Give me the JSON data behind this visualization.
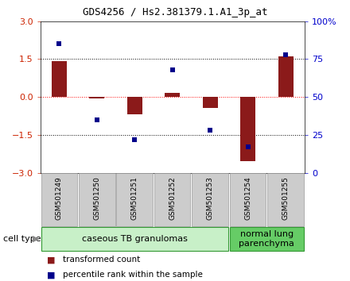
{
  "title": "GDS4256 / Hs2.381379.1.A1_3p_at",
  "samples": [
    "GSM501249",
    "GSM501250",
    "GSM501251",
    "GSM501252",
    "GSM501253",
    "GSM501254",
    "GSM501255"
  ],
  "transformed_count": [
    1.42,
    -0.05,
    -0.7,
    0.15,
    -0.45,
    -2.55,
    1.6
  ],
  "percentile_rank": [
    85,
    35,
    22,
    68,
    28,
    17,
    78
  ],
  "bar_color": "#8B1A1A",
  "square_color": "#00008B",
  "ylim_left": [
    -3,
    3
  ],
  "ylim_right": [
    0,
    100
  ],
  "yticks_left": [
    -3,
    -1.5,
    0,
    1.5,
    3
  ],
  "yticks_right": [
    0,
    25,
    50,
    75,
    100
  ],
  "ytick_labels_right": [
    "0",
    "25",
    "50",
    "75",
    "100%"
  ],
  "groups": [
    {
      "label": "caseous TB granulomas",
      "span": [
        0,
        5
      ],
      "color": "#c8f0c8",
      "border": "#339933"
    },
    {
      "label": "normal lung\nparenchyma",
      "span": [
        5,
        7
      ],
      "color": "#66cc66",
      "border": "#339933"
    }
  ],
  "cell_type_label": "cell type",
  "legend_bar_label": "transformed count",
  "legend_square_label": "percentile rank within the sample",
  "title_fontsize": 9,
  "ylabel_fontsize": 8,
  "sample_label_fontsize": 6.5,
  "legend_fontsize": 7.5,
  "group_fontsize": 8,
  "bar_width": 0.4,
  "square_size": 25
}
